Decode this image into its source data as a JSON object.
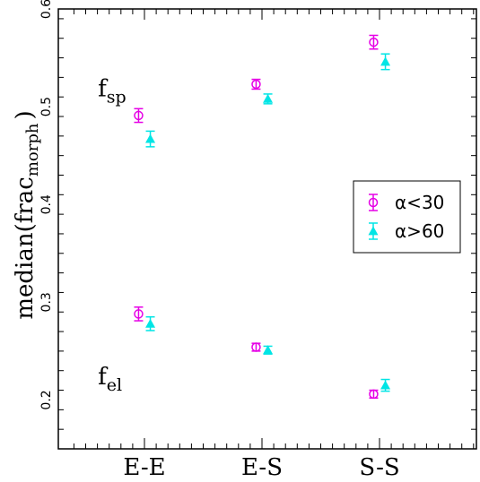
{
  "chart_data": {
    "type": "scatter",
    "categories": [
      "E-E",
      "E-S",
      "S-S"
    ],
    "ylabel": {
      "main": "median(frac",
      "sub": "morph",
      "close": ")"
    },
    "ylim": [
      0.15,
      0.6
    ],
    "yticks": [
      0.2,
      0.3,
      0.4,
      0.5,
      0.6
    ],
    "ytick_labels": [
      "0.2",
      "0.3",
      "0.4",
      "0.5",
      "0.6"
    ],
    "grid": false,
    "legend_position": "right",
    "annotations": [
      {
        "base": "f",
        "sub": "sp",
        "x_cat": -0.35,
        "y": 0.52
      },
      {
        "base": "f",
        "sub": "el",
        "x_cat": -0.35,
        "y": 0.225
      }
    ],
    "series": [
      {
        "name": "α<30",
        "marker": "circle",
        "color": "#e600e6",
        "x_offset": -0.05,
        "groups": [
          {
            "label": "f_sp",
            "values": [
              0.491,
              0.523,
              0.566
            ],
            "errors": [
              0.007,
              0.005,
              0.007
            ]
          },
          {
            "label": "f_el",
            "values": [
              0.288,
              0.254,
              0.206
            ],
            "errors": [
              0.007,
              0.004,
              0.004
            ]
          }
        ]
      },
      {
        "name": "α>60",
        "marker": "triangle",
        "color": "#00e5e5",
        "x_offset": 0.05,
        "groups": [
          {
            "label": "f_sp",
            "values": [
              0.467,
              0.508,
              0.546
            ],
            "errors": [
              0.008,
              0.005,
              0.008
            ]
          },
          {
            "label": "f_el",
            "values": [
              0.278,
              0.251,
              0.215
            ],
            "errors": [
              0.007,
              0.004,
              0.006
            ]
          }
        ]
      }
    ]
  }
}
